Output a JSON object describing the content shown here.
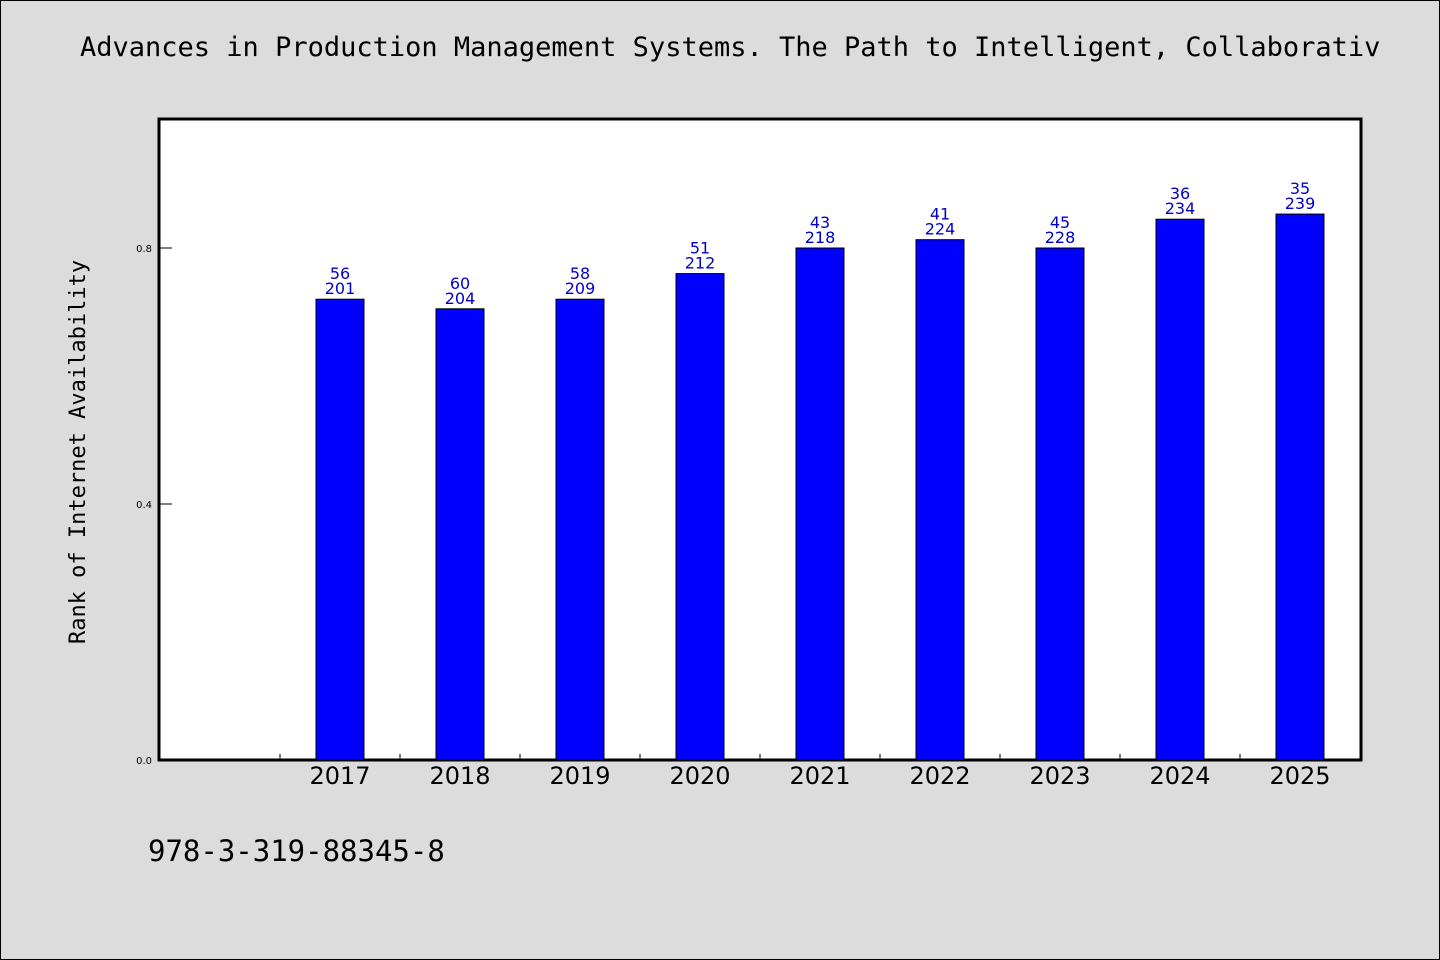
{
  "page": {
    "title": "Advances in Production Management Systems. The Path to Intelligent, Collaborativ",
    "footer": "978-3-319-88345-8"
  },
  "colors": {
    "background": "#dcdcdc",
    "plot_background": "#ffffff",
    "bar": "#0000ff",
    "label": "#0000cc"
  },
  "chart_data": {
    "type": "bar",
    "title": "Advances in Production Management Systems. The Path to Intelligent, Collaborativ",
    "xlabel": "",
    "ylabel": "Rank of Internet Availability",
    "categories": [
      "2017",
      "2018",
      "2019",
      "2020",
      "2021",
      "2022",
      "2023",
      "2024",
      "2025"
    ],
    "series": [
      {
        "values": [
          0.72,
          0.705,
          0.72,
          0.76,
          0.8,
          0.813,
          0.8,
          0.845,
          0.853
        ]
      }
    ],
    "bar_labels_top": [
      "56",
      "60",
      "58",
      "51",
      "43",
      "41",
      "45",
      "36",
      "35"
    ],
    "bar_labels_bottom": [
      "201",
      "204",
      "209",
      "212",
      "218",
      "224",
      "228",
      "234",
      "239"
    ],
    "yticks": [
      0.0,
      0.4,
      0.8
    ],
    "ytick_labels": [
      "0.0",
      "0.4",
      "0.8"
    ],
    "ylim": [
      0,
      1.0
    ],
    "grid": false,
    "legend": "none"
  }
}
